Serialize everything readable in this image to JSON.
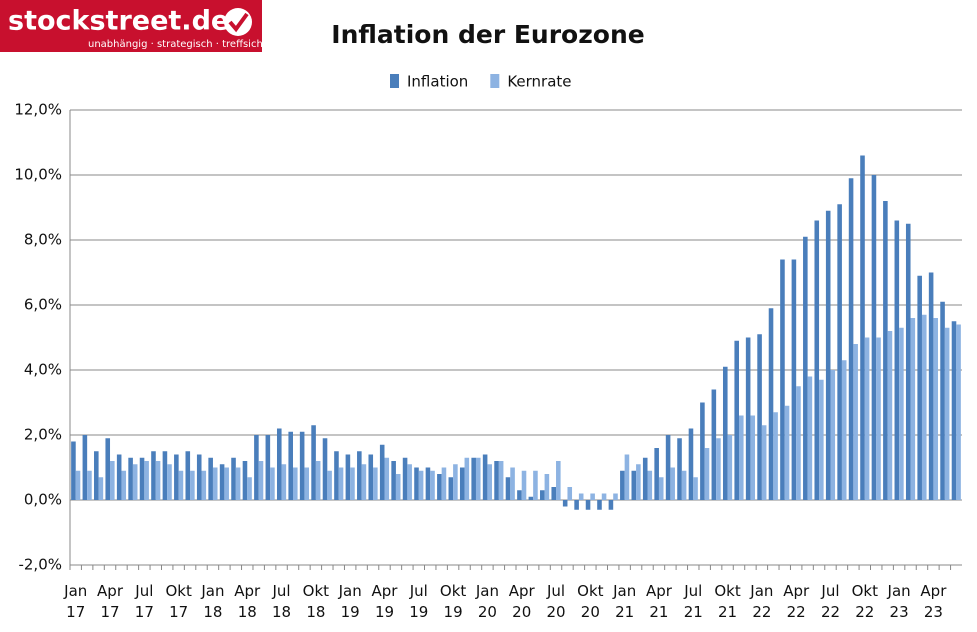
{
  "logo": {
    "name": "stockstreet.de",
    "tagline": "unabhängig · strategisch · treffsicher"
  },
  "chart_data": {
    "type": "bar",
    "title": "Inflation der Eurozone",
    "categories": [
      "Jan 17",
      null,
      null,
      "Apr 17",
      null,
      null,
      "Jul 17",
      null,
      null,
      "Okt 17",
      null,
      null,
      "Jan 18",
      null,
      null,
      "Apr 18",
      null,
      null,
      "Jul 18",
      null,
      null,
      "Okt 18",
      null,
      null,
      "Jan 19",
      null,
      null,
      "Apr 19",
      null,
      null,
      "Jul 19",
      null,
      null,
      "Okt 19",
      null,
      null,
      "Jan 20",
      null,
      null,
      "Apr 20",
      null,
      null,
      "Jul 20",
      null,
      null,
      "Okt 20",
      null,
      null,
      "Jan 21",
      null,
      null,
      "Apr 21",
      null,
      null,
      "Jul 21",
      null,
      null,
      "Okt 21",
      null,
      null,
      "Jan 22",
      null,
      null,
      "Apr 22",
      null,
      null,
      "Jul 22",
      null,
      null,
      "Okt 22",
      null,
      null,
      "Jan 23",
      null,
      null,
      "Apr 23",
      null,
      null
    ],
    "series": [
      {
        "name": "Inflation",
        "color": "#4a7ebb",
        "values": [
          1.8,
          2.0,
          1.5,
          1.9,
          1.4,
          1.3,
          1.3,
          1.5,
          1.5,
          1.4,
          1.5,
          1.4,
          1.3,
          1.1,
          1.3,
          1.2,
          2.0,
          2.0,
          2.2,
          2.1,
          2.1,
          2.3,
          1.9,
          1.5,
          1.4,
          1.5,
          1.4,
          1.7,
          1.2,
          1.3,
          1.0,
          1.0,
          0.8,
          0.7,
          1.0,
          1.3,
          1.4,
          1.2,
          0.7,
          0.3,
          0.1,
          0.3,
          0.4,
          -0.2,
          -0.3,
          -0.3,
          -0.3,
          -0.3,
          0.9,
          0.9,
          1.3,
          1.6,
          2.0,
          1.9,
          2.2,
          3.0,
          3.4,
          4.1,
          4.9,
          5.0,
          5.1,
          5.9,
          7.4,
          7.4,
          8.1,
          8.6,
          8.9,
          9.1,
          9.9,
          10.6,
          10.0,
          9.2,
          8.6,
          8.5,
          6.9,
          7.0,
          6.1,
          5.5
        ]
      },
      {
        "name": "Kernrate",
        "color": "#8db3e2",
        "values": [
          0.9,
          0.9,
          0.7,
          1.2,
          0.9,
          1.1,
          1.2,
          1.2,
          1.1,
          0.9,
          0.9,
          0.9,
          1.0,
          1.0,
          1.0,
          0.7,
          1.2,
          1.0,
          1.1,
          1.0,
          1.0,
          1.2,
          0.9,
          1.0,
          1.0,
          1.1,
          1.0,
          1.3,
          0.8,
          1.1,
          0.9,
          0.9,
          1.0,
          1.1,
          1.3,
          1.3,
          1.1,
          1.2,
          1.0,
          0.9,
          0.9,
          0.8,
          1.2,
          0.4,
          0.2,
          0.2,
          0.2,
          0.2,
          1.4,
          1.1,
          0.9,
          0.7,
          1.0,
          0.9,
          0.7,
          1.6,
          1.9,
          2.0,
          2.6,
          2.6,
          2.3,
          2.7,
          2.9,
          3.5,
          3.8,
          3.7,
          4.0,
          4.3,
          4.8,
          5.0,
          5.0,
          5.2,
          5.3,
          5.6,
          5.7,
          5.6,
          5.3,
          5.4
        ]
      }
    ],
    "ylim": [
      -2,
      12
    ],
    "yticks": [
      {
        "value": -2,
        "label": "-2,0%"
      },
      {
        "value": 0,
        "label": "0,0%"
      },
      {
        "value": 2,
        "label": "2,0%"
      },
      {
        "value": 4,
        "label": "4,0%"
      },
      {
        "value": 6,
        "label": "6,0%"
      },
      {
        "value": 8,
        "label": "8,0%"
      },
      {
        "value": 10,
        "label": "10,0%"
      },
      {
        "value": 12,
        "label": "12,0%"
      }
    ],
    "grid": true,
    "legend": "top"
  }
}
